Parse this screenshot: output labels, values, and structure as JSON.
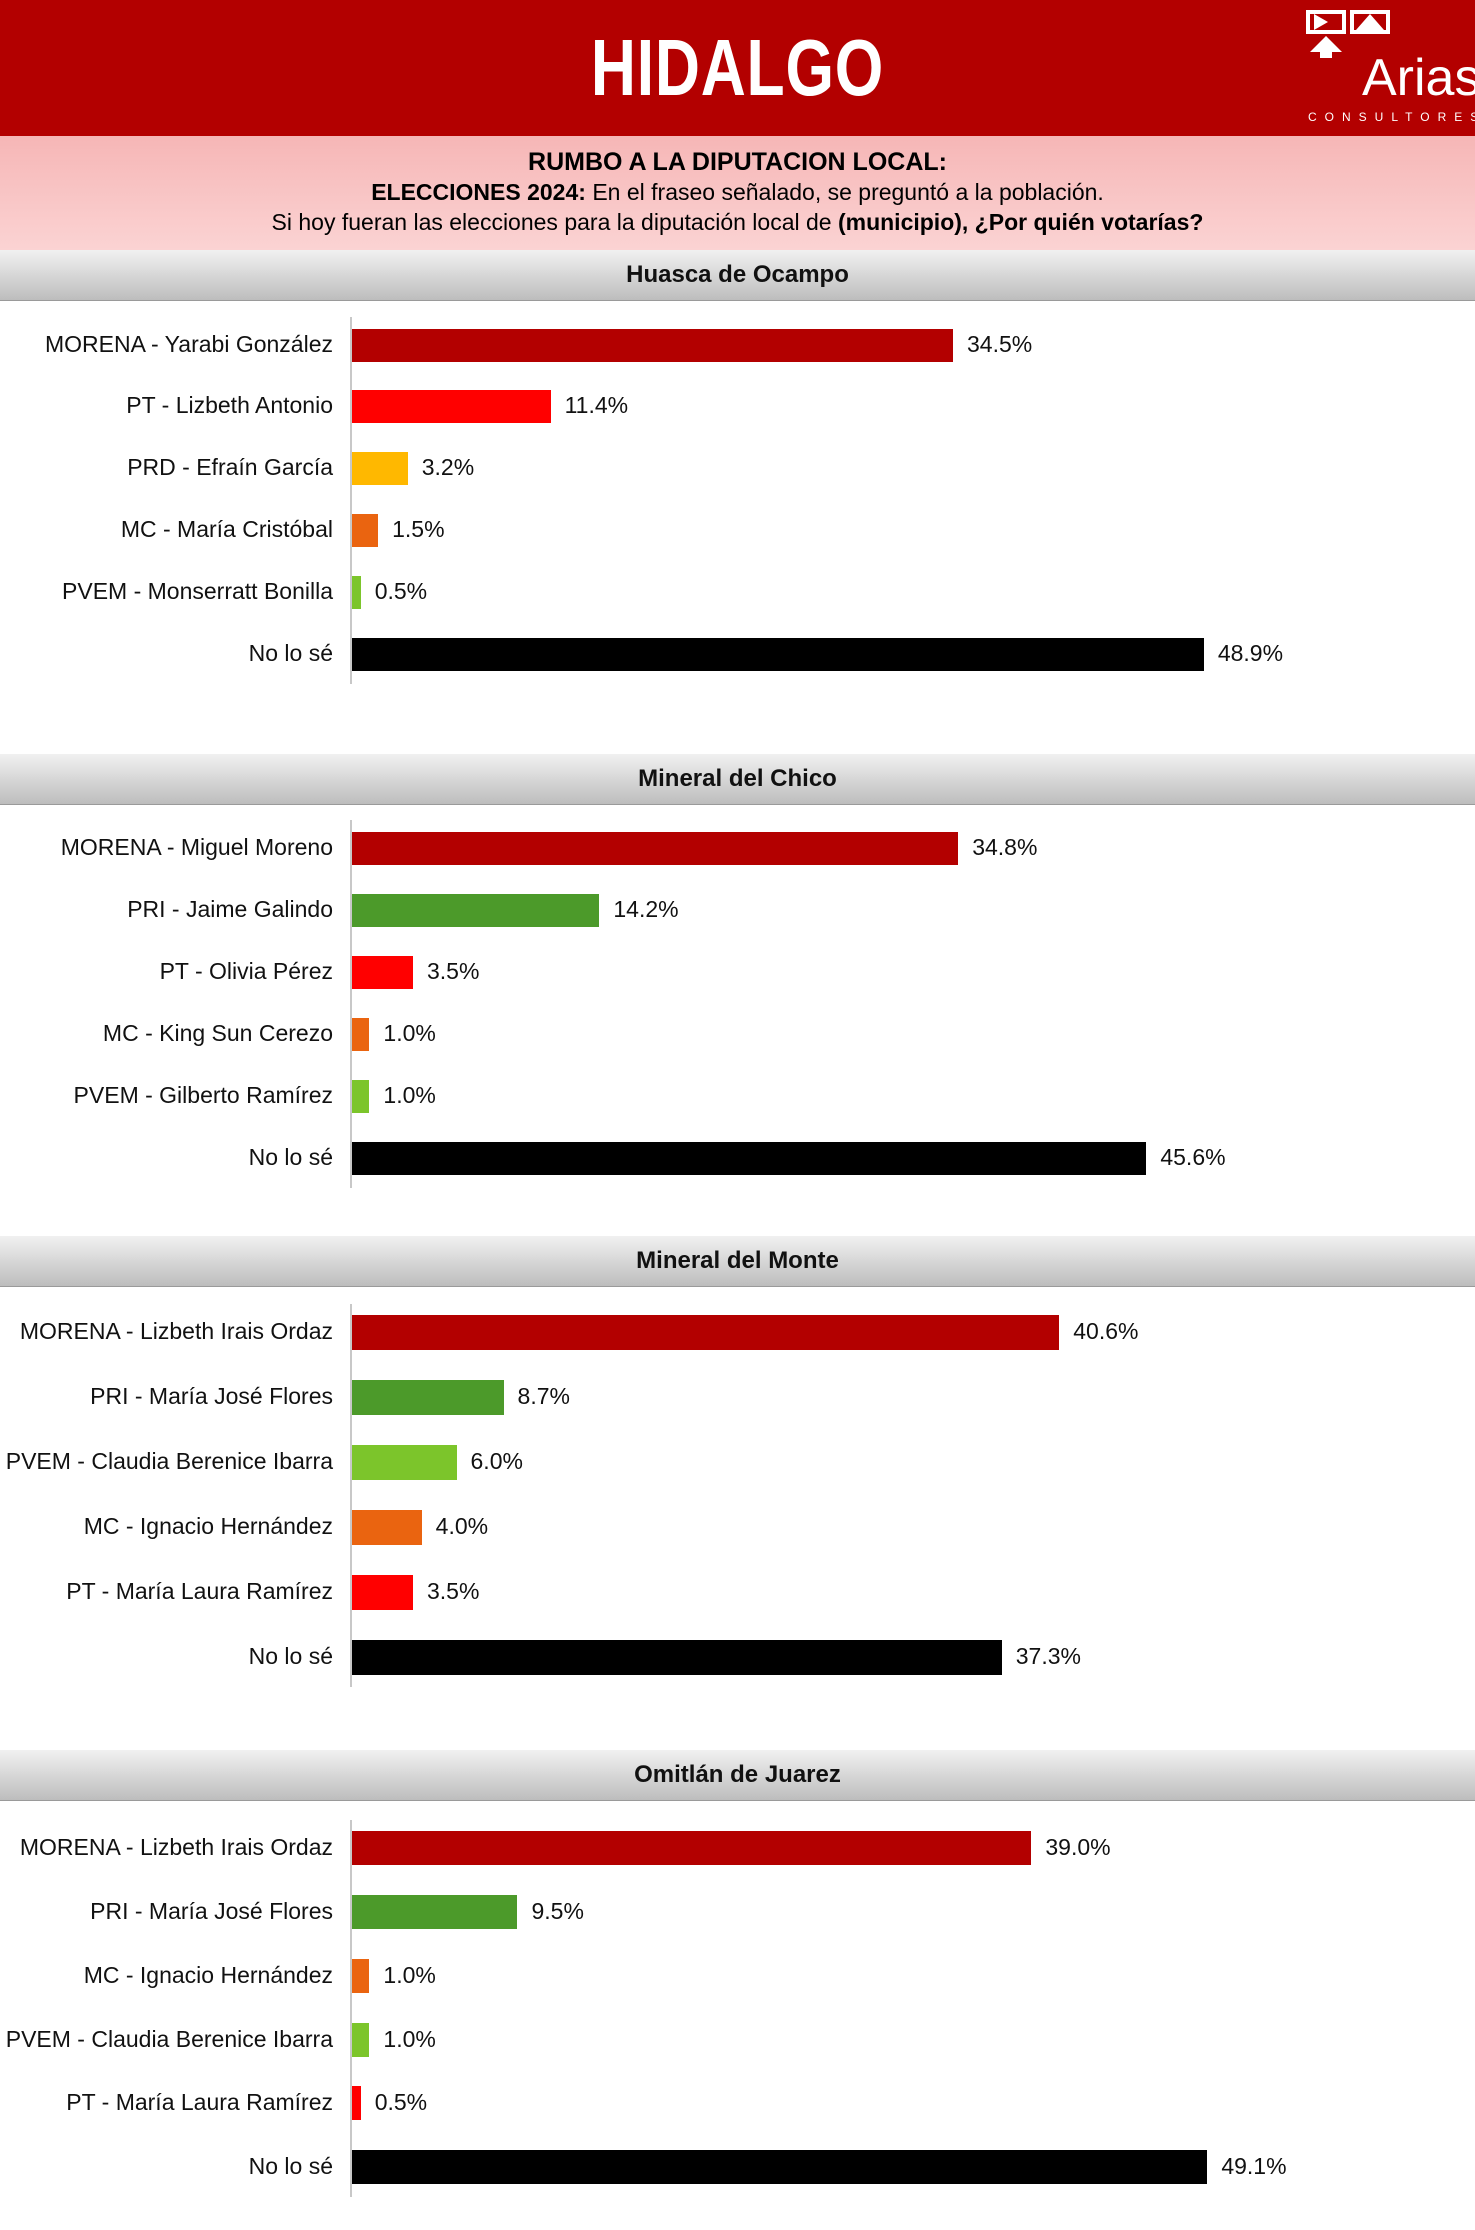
{
  "header": {
    "title": "HIDALGO",
    "logo_text": "Arias",
    "logo_subtext": "CONSULTORES"
  },
  "subheader": {
    "line1": "RUMBO A LA DIPUTACION LOCAL:",
    "line2_bold": "ELECCIONES 2024:",
    "line2_rest": "En el fraseo señalado, se preguntó a la población.",
    "line3_start": "Si hoy fueran las elecciones para la diputación local de",
    "line3_bold": "(municipio), ¿Por quién votarías?"
  },
  "colors": {
    "morena": "#b30000",
    "pt": "#ff0000",
    "prd": "#ffb800",
    "mc": "#ea6410",
    "pvem": "#7cc52b",
    "pri": "#4c9a2a",
    "no_lo_se": "#000000",
    "header_bg": "#b30000"
  },
  "chart_data": [
    {
      "type": "bar",
      "title": "Huasca de Ocampo",
      "categories": [
        "MORENA - Yarabi González",
        "PT - Lizbeth Antonio",
        "PRD - Efraín García",
        "MC - María Cristóbal",
        "PVEM - Monserratt Bonilla",
        "No lo sé"
      ],
      "values": [
        34.5,
        11.4,
        3.2,
        1.5,
        0.5,
        48.9
      ],
      "labels": [
        "34.5%",
        "11.4%",
        "3.2%",
        "1.5%",
        "0.5%",
        "48.9%"
      ],
      "colors": [
        "#b30000",
        "#ff0000",
        "#ffb800",
        "#ea6410",
        "#7cc52b",
        "#000000"
      ]
    },
    {
      "type": "bar",
      "title": "Mineral del Chico",
      "categories": [
        "MORENA - Miguel Moreno",
        "PRI - Jaime Galindo",
        "PT - Olivia Pérez",
        "MC - King Sun Cerezo",
        "PVEM - Gilberto Ramírez",
        "No lo sé"
      ],
      "values": [
        34.8,
        14.2,
        3.5,
        1.0,
        1.0,
        45.6
      ],
      "labels": [
        "34.8%",
        "14.2%",
        "3.5%",
        "1.0%",
        "1.0%",
        "45.6%"
      ],
      "colors": [
        "#b30000",
        "#4c9a2a",
        "#ff0000",
        "#ea6410",
        "#7cc52b",
        "#000000"
      ]
    },
    {
      "type": "bar",
      "title": "Mineral del Monte",
      "categories": [
        "MORENA - Lizbeth Irais Ordaz",
        "PRI - María José Flores",
        "PVEM - Claudia Berenice Ibarra",
        "MC - Ignacio Hernández",
        "PT - María Laura Ramírez",
        "No lo sé"
      ],
      "values": [
        40.6,
        8.7,
        6.0,
        4.0,
        3.5,
        37.3
      ],
      "labels": [
        "40.6%",
        "8.7%",
        "6.0%",
        "4.0%",
        "3.5%",
        "37.3%"
      ],
      "colors": [
        "#b30000",
        "#4c9a2a",
        "#7cc52b",
        "#ea6410",
        "#ff0000",
        "#000000"
      ]
    },
    {
      "type": "bar",
      "title": "Omitlán de Juarez",
      "categories": [
        "MORENA - Lizbeth Irais Ordaz",
        "PRI - María José Flores",
        "MC - Ignacio Hernández",
        "PVEM - Claudia Berenice Ibarra",
        "PT - María Laura Ramírez",
        "No lo sé"
      ],
      "values": [
        39.0,
        9.5,
        1.0,
        1.0,
        0.5,
        49.1
      ],
      "labels": [
        "39.0%",
        "9.5%",
        "1.0%",
        "1.0%",
        "0.5%",
        "49.1%"
      ],
      "colors": [
        "#b30000",
        "#4c9a2a",
        "#ea6410",
        "#7cc52b",
        "#ff0000",
        "#000000"
      ]
    }
  ]
}
